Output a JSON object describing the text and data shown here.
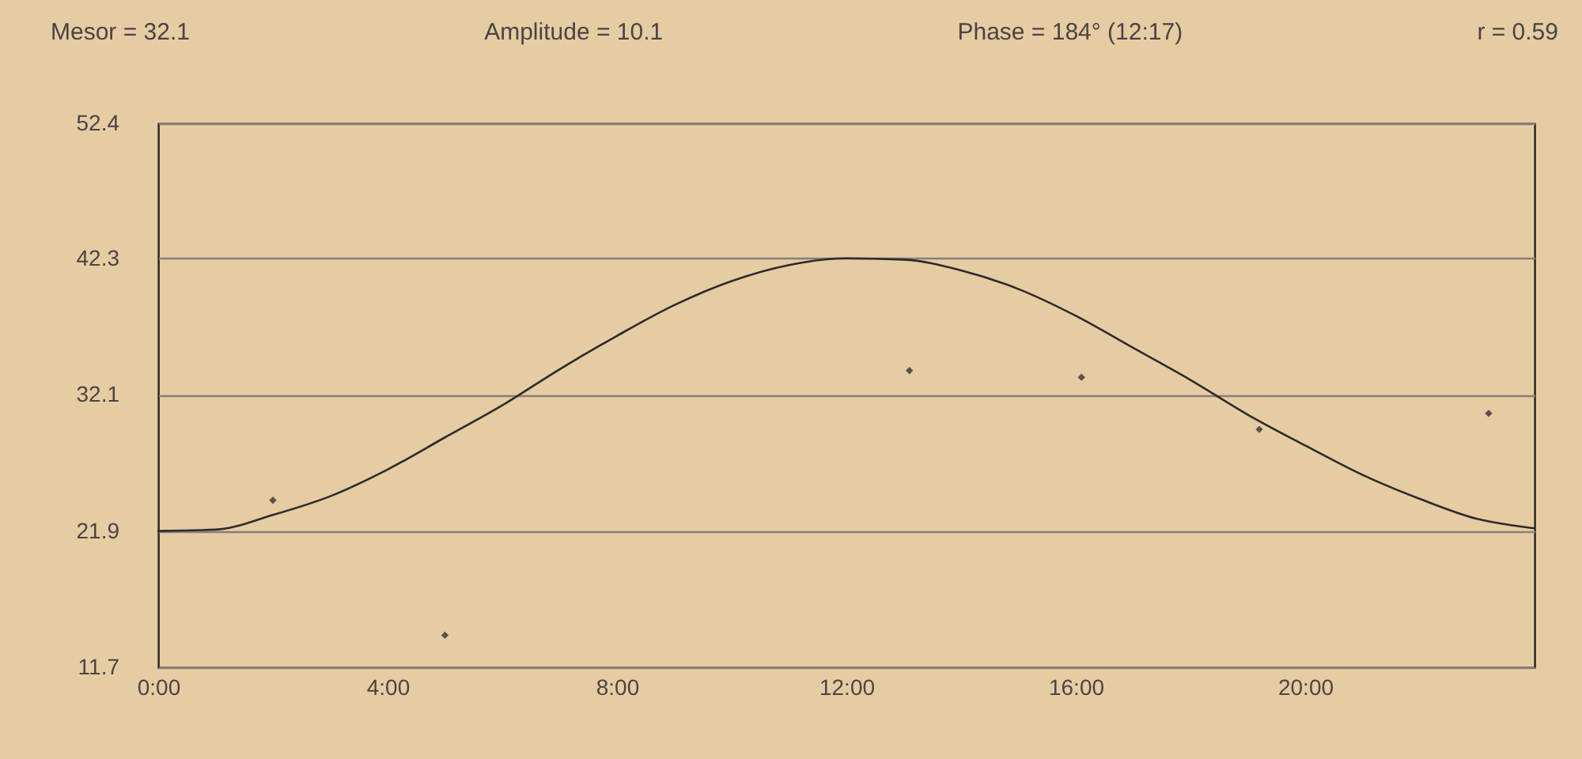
{
  "chart_data": {
    "type": "line",
    "annotations": [
      "Mesor = 32.1",
      "Amplitude = 10.1",
      "Phase = 184° (12:17)",
      "r = 0.59"
    ],
    "xlim": [
      0,
      24
    ],
    "xticks": [
      {
        "value": 0,
        "label": "0:00"
      },
      {
        "value": 4,
        "label": "4:00"
      },
      {
        "value": 8,
        "label": "8:00"
      },
      {
        "value": 12,
        "label": "12:00"
      },
      {
        "value": 16,
        "label": "16:00"
      },
      {
        "value": 20,
        "label": "20:00"
      }
    ],
    "ylim": [
      11.7,
      52.4
    ],
    "yticks": [
      11.7,
      21.9,
      32.1,
      42.3,
      52.4
    ],
    "grid": "y",
    "series": [
      {
        "type": "scatter",
        "color": "#5a5050",
        "marker": "diamond",
        "x": [
          2.0,
          5.0,
          13.1,
          16.1,
          19.2,
          23.2
        ],
        "values": [
          24.2,
          14.1,
          33.9,
          33.4,
          29.5,
          30.7
        ]
      },
      {
        "color": "#2b2b2b",
        "x": [
          0,
          1,
          2,
          3,
          4,
          5,
          6,
          7,
          8,
          9,
          10,
          11,
          12,
          13,
          14,
          15,
          16,
          17,
          18,
          19,
          20,
          21,
          22,
          23,
          24
        ],
        "values": [
          21.9,
          22.0,
          23.1,
          24.5,
          26.5,
          28.9,
          31.3,
          34.0,
          36.5,
          38.8,
          40.6,
          41.8,
          42.3,
          42.2,
          41.4,
          40.0,
          38.0,
          35.6,
          33.2,
          30.6,
          28.3,
          26.1,
          24.3,
          22.8,
          22.1
        ]
      }
    ]
  }
}
